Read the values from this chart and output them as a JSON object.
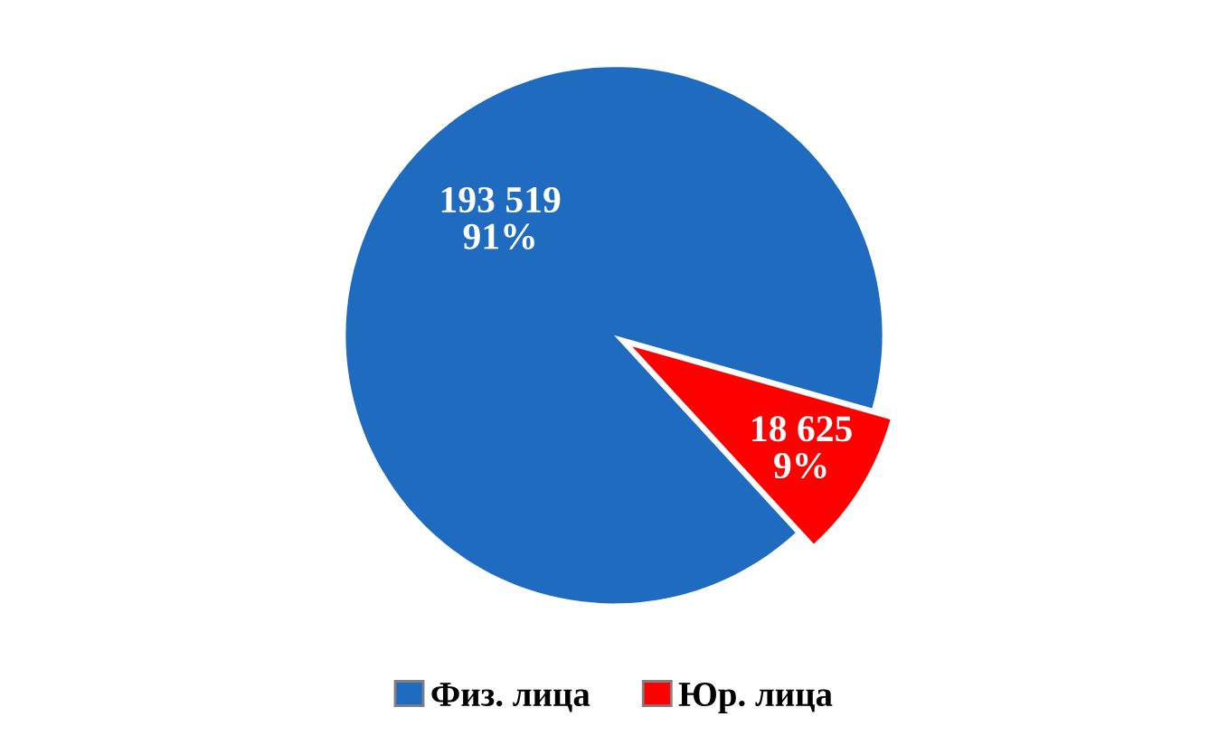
{
  "chart_data": {
    "type": "pie",
    "categories": [
      "Физ. лица",
      "Юр. лица"
    ],
    "values": [
      193519,
      18625
    ],
    "colors": [
      "#1f6bc0",
      "#ff0000"
    ],
    "value_labels": [
      "193 519\n91%",
      "18 625\n9%"
    ],
    "legend": "bottom"
  }
}
